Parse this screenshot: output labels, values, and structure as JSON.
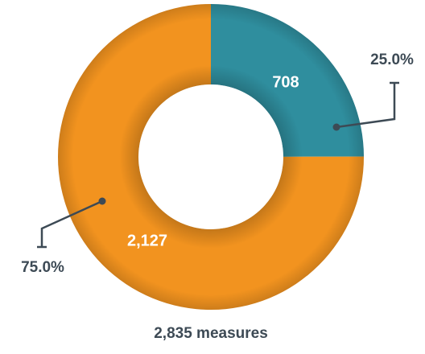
{
  "chart_data": {
    "type": "donut",
    "categories": [
      null,
      null
    ],
    "values": [
      708,
      2127
    ],
    "value_labels": [
      "708",
      "2,127"
    ],
    "percents": [
      25.0,
      75.0
    ],
    "percent_labels": [
      "25.0%",
      "75.0%"
    ],
    "colors": [
      "#2f8e9e",
      "#f2931f"
    ],
    "caption": "2,835 measures"
  }
}
